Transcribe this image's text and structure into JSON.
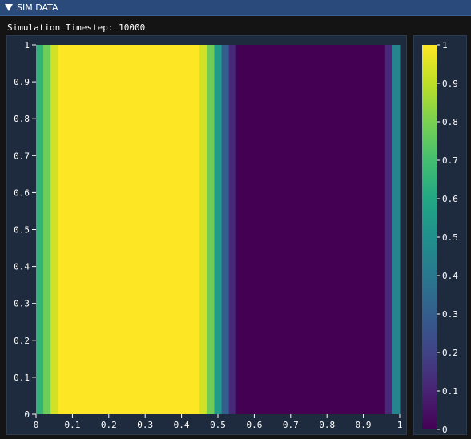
{
  "window": {
    "title": "SIM DATA",
    "collapse_icon": "triangle-down-icon"
  },
  "status": {
    "timestep_label": "Simulation Timestep:",
    "timestep_value": "10000"
  },
  "colors": {
    "titlebar": "#294a7a",
    "panel_bg": "#1e2a3d",
    "window_bg": "#141414"
  },
  "chart_data": [
    {
      "type": "heatmap",
      "colormap": "viridis",
      "x_ticks": [
        "0",
        "0.1",
        "0.2",
        "0.3",
        "0.4",
        "0.5",
        "0.6",
        "0.7",
        "0.8",
        "0.9",
        "1"
      ],
      "y_ticks": [
        "0",
        "0.1",
        "0.2",
        "0.3",
        "0.4",
        "0.5",
        "0.6",
        "0.7",
        "0.8",
        "0.9",
        "1"
      ],
      "xlim": [
        0,
        1
      ],
      "ylim": [
        0,
        1
      ],
      "x_edges": [
        0,
        0.02,
        0.04,
        0.06,
        0.45,
        0.47,
        0.49,
        0.51,
        0.53,
        0.55,
        0.96,
        0.98,
        1.0
      ],
      "column_values": [
        0.65,
        0.78,
        0.93,
        1.0,
        0.93,
        0.78,
        0.55,
        0.3,
        0.12,
        0.0,
        0.12,
        0.45
      ],
      "grid": false
    },
    {
      "type": "colorbar",
      "colormap": "viridis",
      "range": [
        0,
        1
      ],
      "ticks": [
        "0",
        "0.1",
        "0.2",
        "0.3",
        "0.4",
        "0.5",
        "0.6",
        "0.7",
        "0.8",
        "0.9",
        "1"
      ]
    }
  ]
}
